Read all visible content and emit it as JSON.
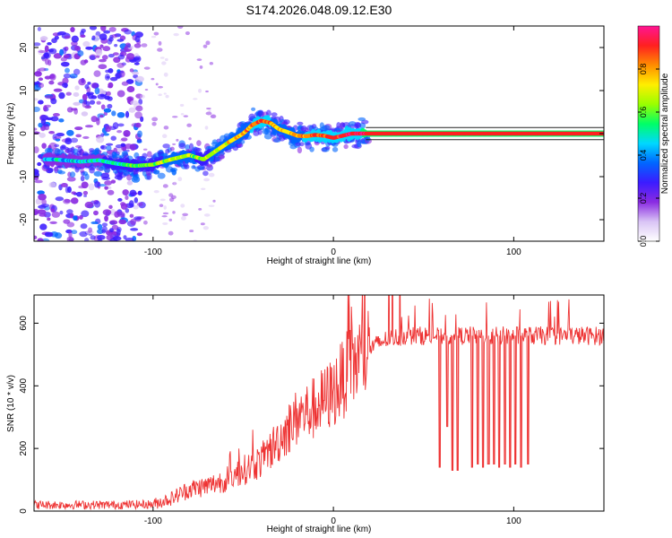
{
  "title": "S174.2026.048.09.12.E30",
  "chart_data": [
    {
      "type": "heatmap",
      "xlabel": "Height of straight line (km)",
      "ylabel": "Frequency (Hz)",
      "xlim": [
        -166,
        150
      ],
      "ylim": [
        -25,
        25
      ],
      "xticks": [
        -100,
        0,
        100
      ],
      "xtick_labels": [
        "-100",
        "0",
        "100"
      ],
      "yticks": [
        -20,
        -10,
        0,
        10,
        20
      ],
      "ytick_labels": [
        "-20",
        "-10",
        "0",
        "10",
        "20"
      ],
      "colorbar": {
        "label": "Normalized spectral amplitude",
        "range": [
          0,
          1
        ],
        "ticks": [
          0.0,
          0.2,
          0.4,
          0.6,
          0.8
        ],
        "tick_labels": [
          "0.0",
          "0.2",
          "0.4",
          "0.6",
          "0.8"
        ],
        "colors": [
          "#ffffff",
          "#d9c4f5",
          "#8a2be2",
          "#3b1cff",
          "#0066ff",
          "#00d8ff",
          "#00ff66",
          "#9aff00",
          "#ffee00",
          "#ff8c00",
          "#ff2020",
          "#ff1493"
        ]
      },
      "ridge": {
        "x": [
          -155,
          -140,
          -130,
          -120,
          -110,
          -100,
          -90,
          -80,
          -72,
          -65,
          -58,
          -50,
          -45,
          -40,
          -35,
          -30,
          -25,
          -20,
          -15,
          -10,
          -5,
          0,
          5,
          10,
          15,
          20,
          40,
          60,
          80,
          100,
          150
        ],
        "y": [
          -6,
          -6.5,
          -6.2,
          -7,
          -7.5,
          -7.2,
          -6,
          -5,
          -6,
          -4,
          -2,
          0,
          2,
          3,
          2.5,
          1,
          0.3,
          -0.5,
          -0.6,
          -0.3,
          -0.5,
          -1,
          -0.5,
          0,
          0,
          0,
          0,
          0,
          0,
          0,
          0
        ],
        "amplitude": [
          0.35,
          0.4,
          0.4,
          0.45,
          0.5,
          0.55,
          0.6,
          0.6,
          0.55,
          0.6,
          0.65,
          0.7,
          0.75,
          0.8,
          0.75,
          0.7,
          0.7,
          0.72,
          0.75,
          0.8,
          0.8,
          0.82,
          0.85,
          0.88,
          0.9,
          0.95,
          0.95,
          0.95,
          0.95,
          0.95,
          0.95
        ]
      }
    },
    {
      "type": "line",
      "xlabel": "Height of straight line (km)",
      "ylabel": "SNR (10 * v/v)",
      "xlim": [
        -166,
        150
      ],
      "ylim": [
        0,
        690
      ],
      "xticks": [
        -100,
        0,
        100
      ],
      "xtick_labels": [
        "-100",
        "0",
        "100"
      ],
      "yticks": [
        0,
        200,
        400,
        600
      ],
      "ytick_labels": [
        "0",
        "200",
        "400",
        "600"
      ],
      "color": "#ee3333",
      "trend": {
        "x": [
          -166,
          -120,
          -100,
          -90,
          -80,
          -70,
          -60,
          -50,
          -40,
          -30,
          -20,
          -10,
          0,
          10,
          20,
          30,
          40,
          150
        ],
        "y": [
          20,
          20,
          22,
          40,
          70,
          80,
          100,
          130,
          160,
          230,
          300,
          330,
          380,
          460,
          520,
          550,
          560,
          560
        ]
      },
      "dropouts": {
        "x": [
          59,
          63,
          66,
          69,
          77,
          80,
          83,
          86,
          89,
          92,
          95,
          98,
          101,
          104,
          108
        ],
        "y": [
          140,
          270,
          130,
          130,
          140,
          150,
          140,
          150,
          150,
          140,
          150,
          140,
          150,
          140,
          150
        ]
      }
    }
  ]
}
